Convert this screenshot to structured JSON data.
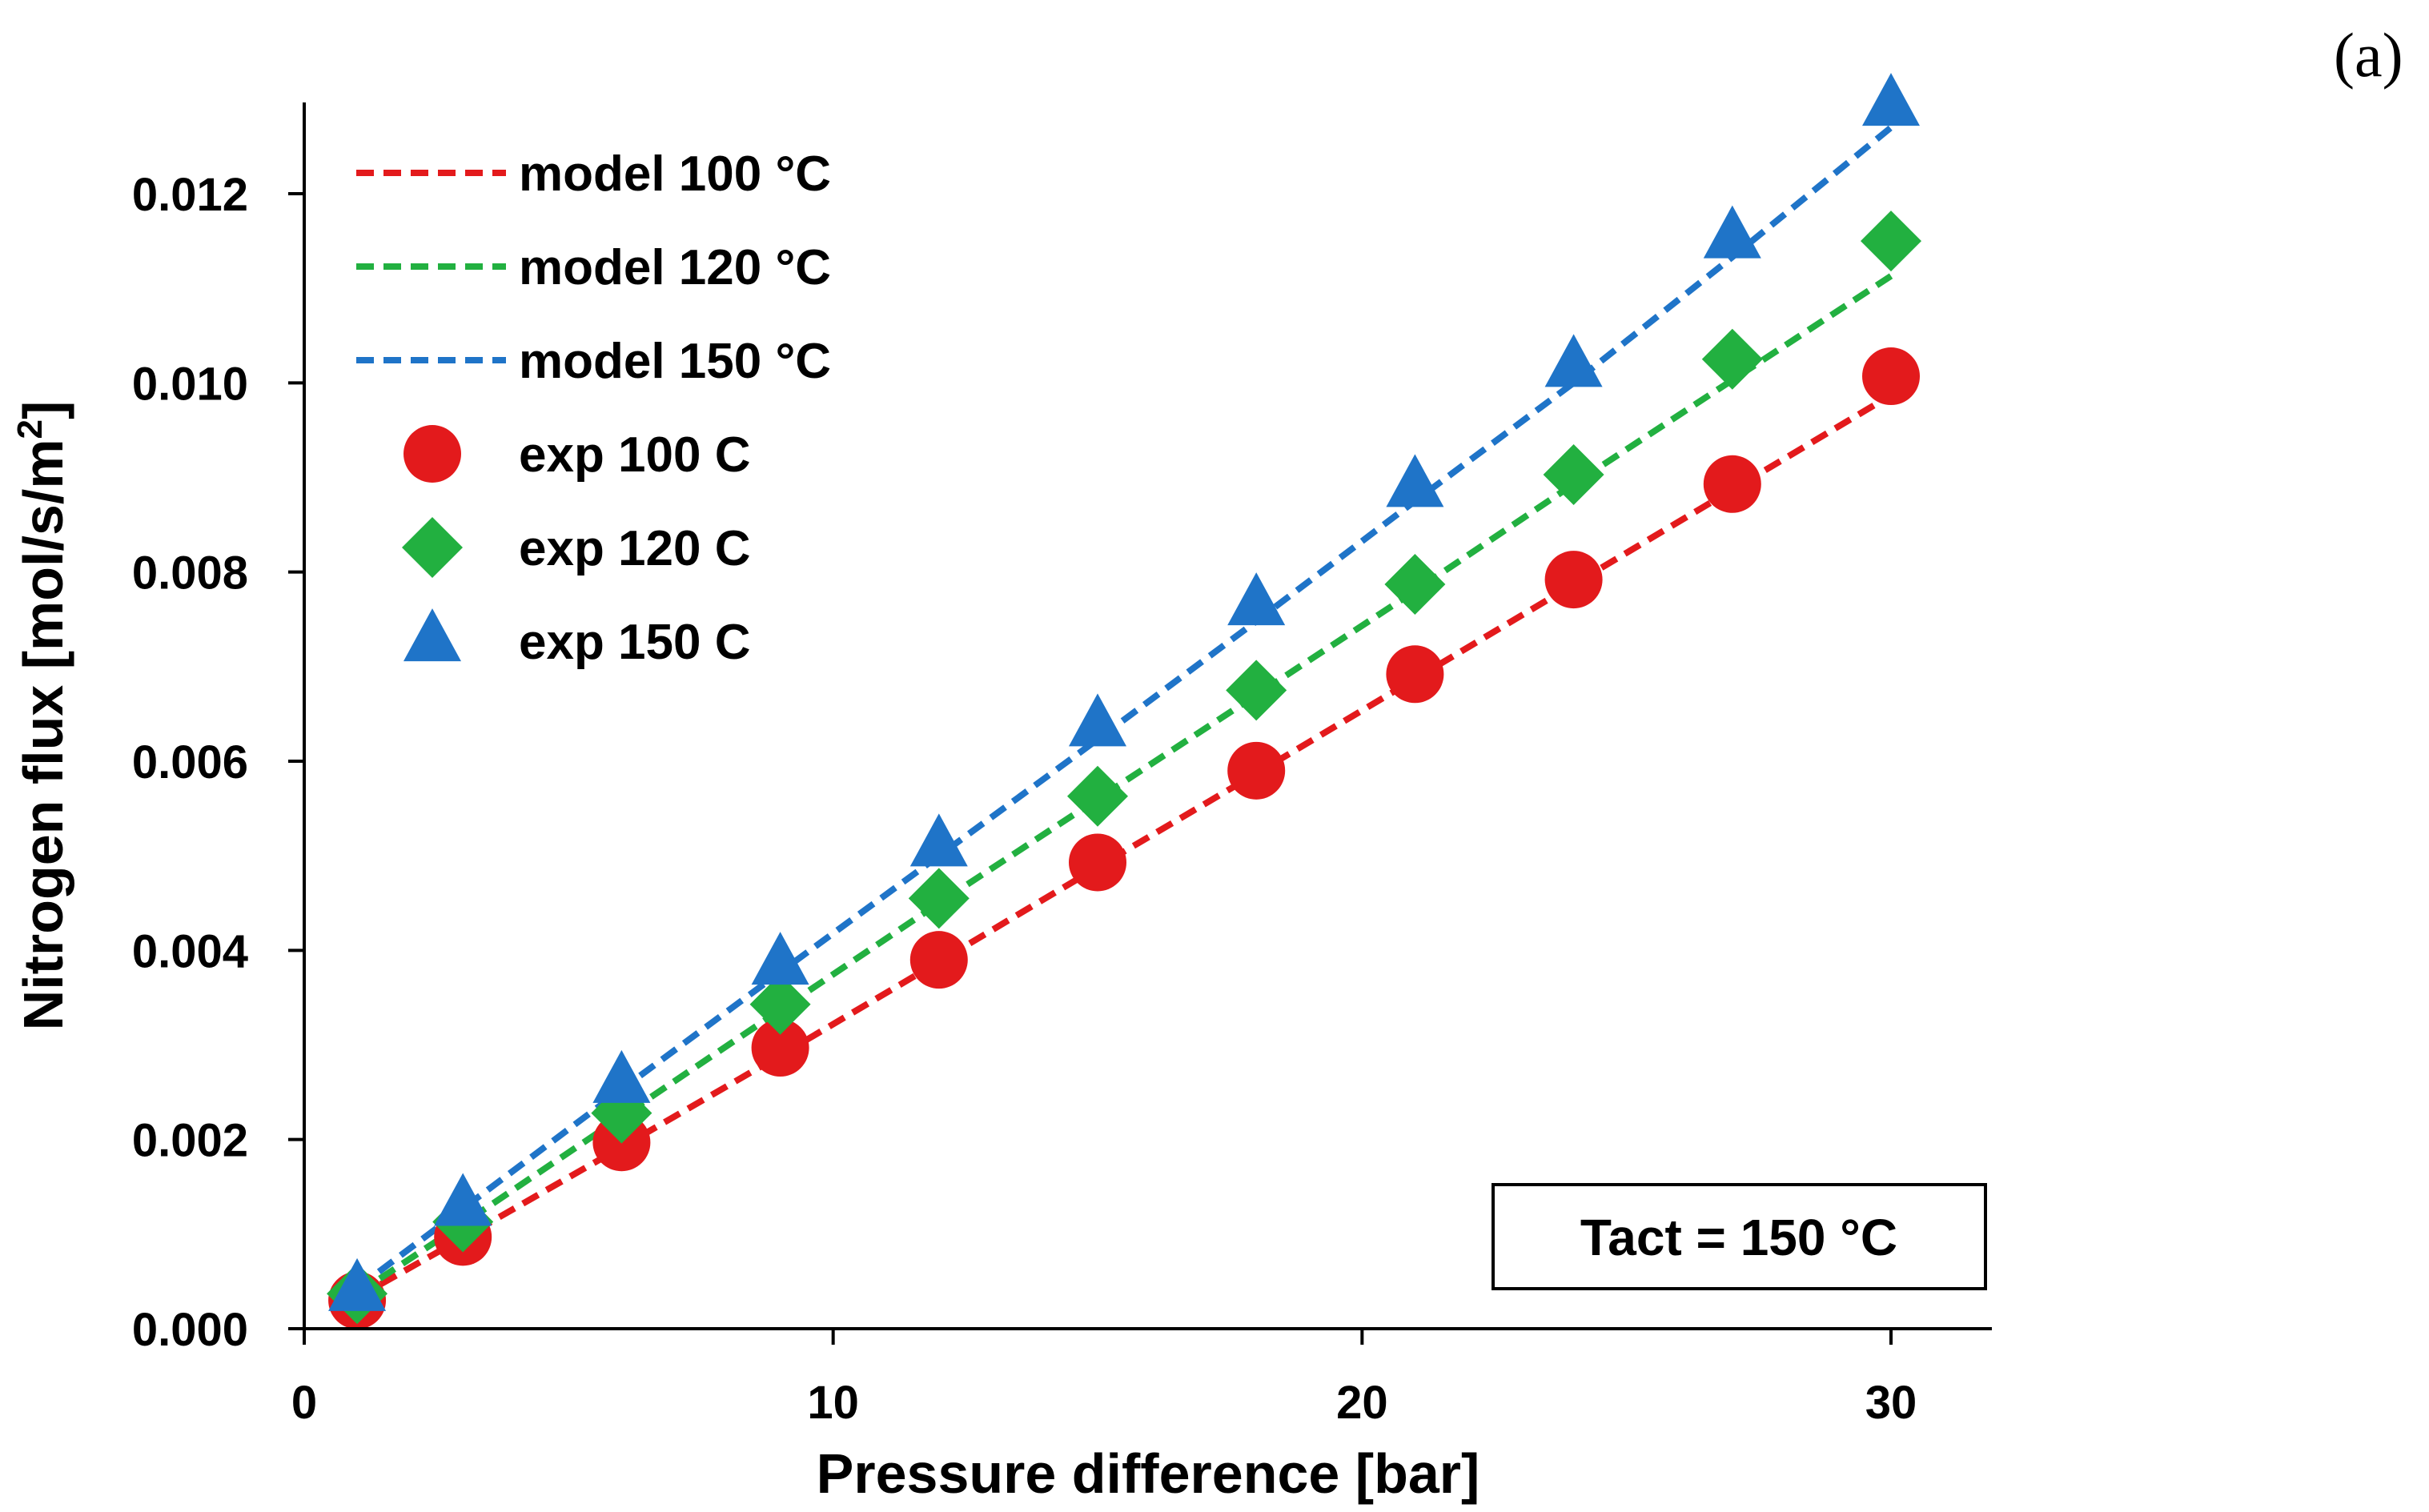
{
  "panel_label": "(a)",
  "annotation": "Tact = 150 °C",
  "chart_data": {
    "type": "scatter",
    "title": "",
    "xlabel": "Pressure difference [bar]",
    "ylabel_main": "Nitrogen flux [mol/s/m",
    "ylabel_sup": "2",
    "ylabel_end": "]",
    "xlim": [
      0,
      32
    ],
    "ylim": [
      0,
      0.013
    ],
    "xticks": [
      0,
      10,
      20,
      30
    ],
    "yticks": [
      0.0,
      0.002,
      0.004,
      0.006,
      0.008,
      0.01,
      0.012
    ],
    "xtick_labels": [
      "0",
      "10",
      "20",
      "30"
    ],
    "ytick_labels": [
      "0.000",
      "0.002",
      "0.004",
      "0.006",
      "0.008",
      "0.010",
      "0.012"
    ],
    "grid": false,
    "legend_position": "top-left",
    "x": [
      1,
      3,
      6,
      9,
      12,
      15,
      18,
      21,
      24,
      27,
      30
    ],
    "series": [
      {
        "name": "model 100 °C",
        "kind": "line",
        "color": "#e31a1c",
        "values": [
          0.00033,
          0.00096,
          0.00192,
          0.00289,
          0.00388,
          0.00488,
          0.00587,
          0.00687,
          0.00787,
          0.00887,
          0.00987
        ]
      },
      {
        "name": "model 120 °C",
        "kind": "line",
        "color": "#22b040",
        "values": [
          0.00037,
          0.00111,
          0.00224,
          0.00337,
          0.0045,
          0.0056,
          0.0067,
          0.0078,
          0.00893,
          0.01003,
          0.01113
        ]
      },
      {
        "name": "model 150 °C",
        "kind": "line",
        "color": "#1f74c8",
        "values": [
          0.00043,
          0.00127,
          0.00253,
          0.00377,
          0.005,
          0.00623,
          0.00748,
          0.00875,
          0.01,
          0.01133,
          0.0127
        ]
      },
      {
        "name": "exp 100 C",
        "kind": "marker",
        "marker": "circle",
        "color": "#e31a1c",
        "values": [
          0.0003,
          0.00097,
          0.00197,
          0.00297,
          0.0039,
          0.00493,
          0.0059,
          0.00692,
          0.00792,
          0.00893,
          0.01007
        ]
      },
      {
        "name": "exp 120 C",
        "kind": "marker",
        "marker": "diamond",
        "color": "#22b040",
        "values": [
          0.00037,
          0.00113,
          0.00228,
          0.00343,
          0.00455,
          0.00563,
          0.00675,
          0.00787,
          0.00903,
          0.01025,
          0.0115
        ]
      },
      {
        "name": "exp 150 C",
        "kind": "marker",
        "marker": "triangle",
        "color": "#1f74c8",
        "values": [
          0.0004,
          0.0013,
          0.0026,
          0.00385,
          0.0051,
          0.00637,
          0.00765,
          0.0089,
          0.01017,
          0.01153,
          0.01293
        ]
      }
    ]
  }
}
